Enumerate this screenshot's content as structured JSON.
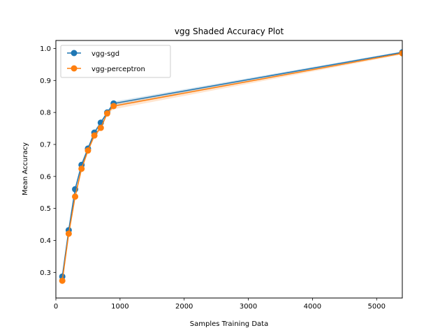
{
  "chart_data": {
    "type": "line",
    "title": "vgg Shaded Accuracy Plot",
    "xlabel": "Samples Training Data",
    "ylabel": "Mean Accuracy",
    "xlim": [
      0,
      5400
    ],
    "ylim": [
      0.22,
      1.025
    ],
    "xticks": [
      0,
      1000,
      2000,
      3000,
      4000,
      5000
    ],
    "yticks": [
      0.3,
      0.4,
      0.5,
      0.6,
      0.7,
      0.8,
      0.9,
      1.0
    ],
    "xtick_labels": [
      "0",
      "1000",
      "2000",
      "3000",
      "4000",
      "5000"
    ],
    "ytick_labels": [
      "0.3",
      "0.4",
      "0.5",
      "0.6",
      "0.7",
      "0.8",
      "0.9",
      "1.0"
    ],
    "grid": false,
    "legend_position": "top-left",
    "x": [
      100,
      200,
      300,
      400,
      500,
      600,
      700,
      800,
      900,
      5400
    ],
    "series": [
      {
        "name": "vgg-sgd",
        "color": "#1f77b4",
        "values": [
          0.287,
          0.432,
          0.56,
          0.636,
          0.687,
          0.737,
          0.768,
          0.8,
          0.828,
          0.988
        ],
        "band": [
          0.005,
          0.008,
          0.008,
          0.008,
          0.007,
          0.006,
          0.005,
          0.004,
          0.006,
          0.003
        ]
      },
      {
        "name": "vgg-perceptron",
        "color": "#ff7f0e",
        "values": [
          0.274,
          0.421,
          0.537,
          0.624,
          0.681,
          0.728,
          0.752,
          0.797,
          0.82,
          0.985
        ],
        "band": [
          0.005,
          0.008,
          0.009,
          0.009,
          0.008,
          0.007,
          0.006,
          0.005,
          0.01,
          0.004
        ]
      }
    ]
  }
}
